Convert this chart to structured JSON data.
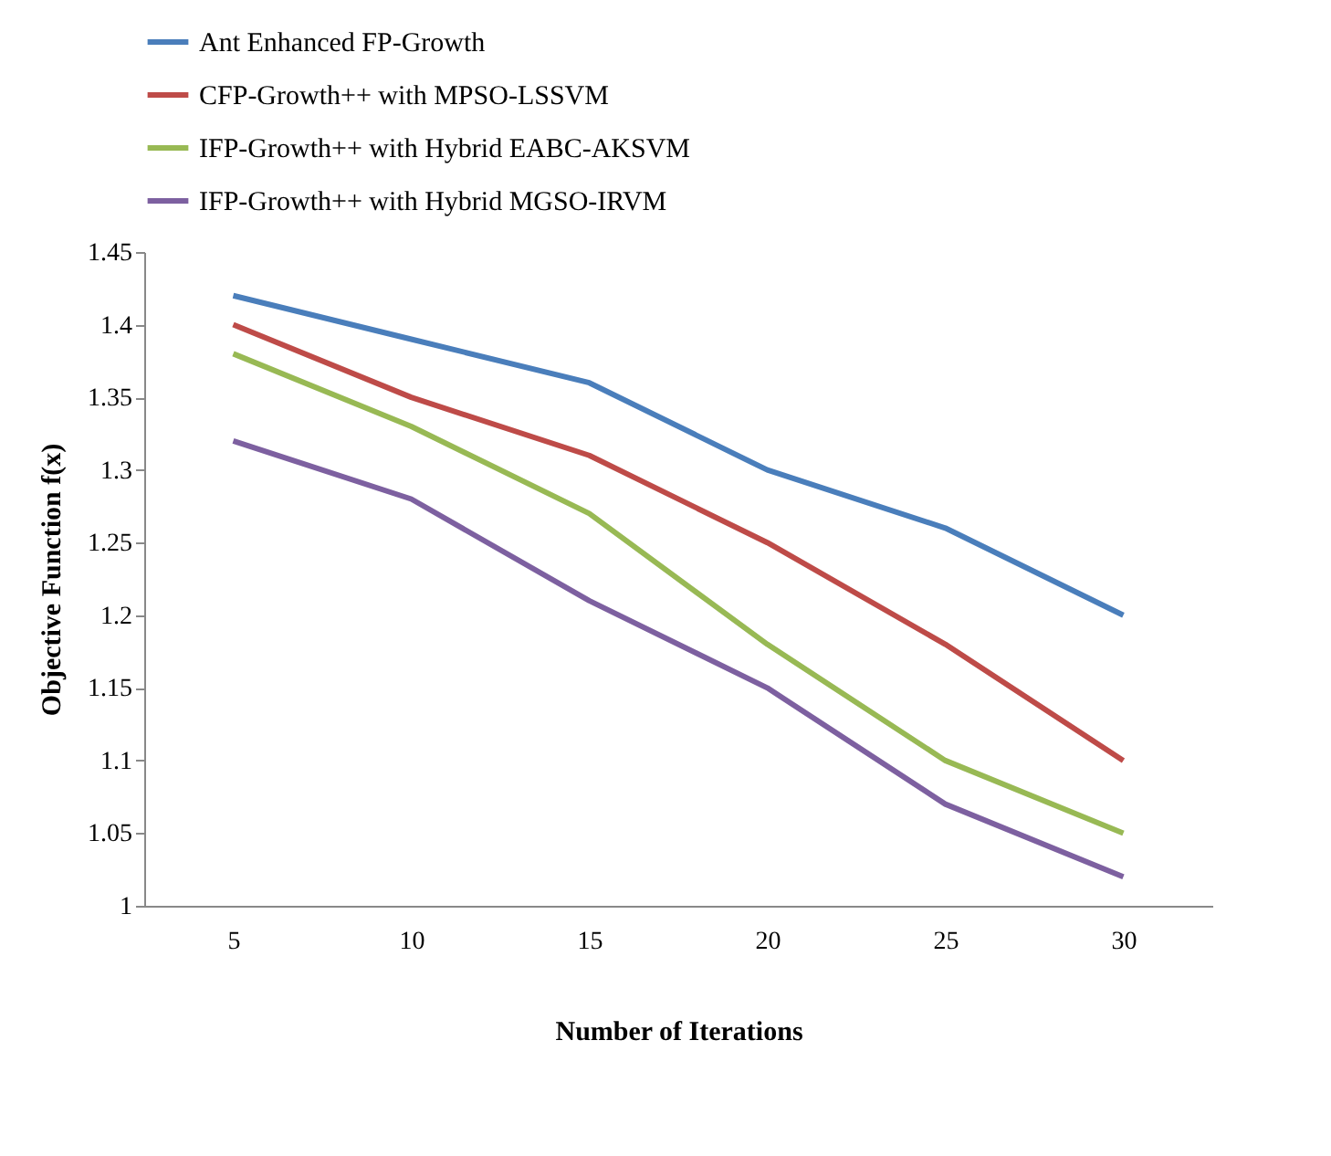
{
  "chart_data": {
    "type": "line",
    "xlabel": "Number of Iterations",
    "ylabel": "Objective Function f(x)",
    "categories": [
      "5",
      "10",
      "15",
      "20",
      "25",
      "30"
    ],
    "ylim": [
      1,
      1.45
    ],
    "yticks": [
      1,
      1.05,
      1.1,
      1.15,
      1.2,
      1.25,
      1.3,
      1.35,
      1.4,
      1.45
    ],
    "grid": false,
    "legend": "top",
    "marker": "none",
    "line_style": "solid",
    "series": [
      {
        "name": "Ant Enhanced FP-Growth",
        "color": "#4a7ebb",
        "values": [
          1.42,
          1.39,
          1.36,
          1.3,
          1.26,
          1.2
        ]
      },
      {
        "name": "CFP-Growth++ with MPSO-LSSVM",
        "color": "#be4b48",
        "values": [
          1.4,
          1.35,
          1.31,
          1.25,
          1.18,
          1.1
        ]
      },
      {
        "name": "IFP-Growth++ with Hybrid EABC-AKSVM",
        "color": "#98b954",
        "values": [
          1.38,
          1.33,
          1.27,
          1.18,
          1.1,
          1.05
        ]
      },
      {
        "name": "IFP-Growth++ with Hybrid MGSO-IRVM",
        "color": "#7d60a0",
        "values": [
          1.32,
          1.28,
          1.21,
          1.15,
          1.07,
          1.02
        ]
      }
    ]
  }
}
